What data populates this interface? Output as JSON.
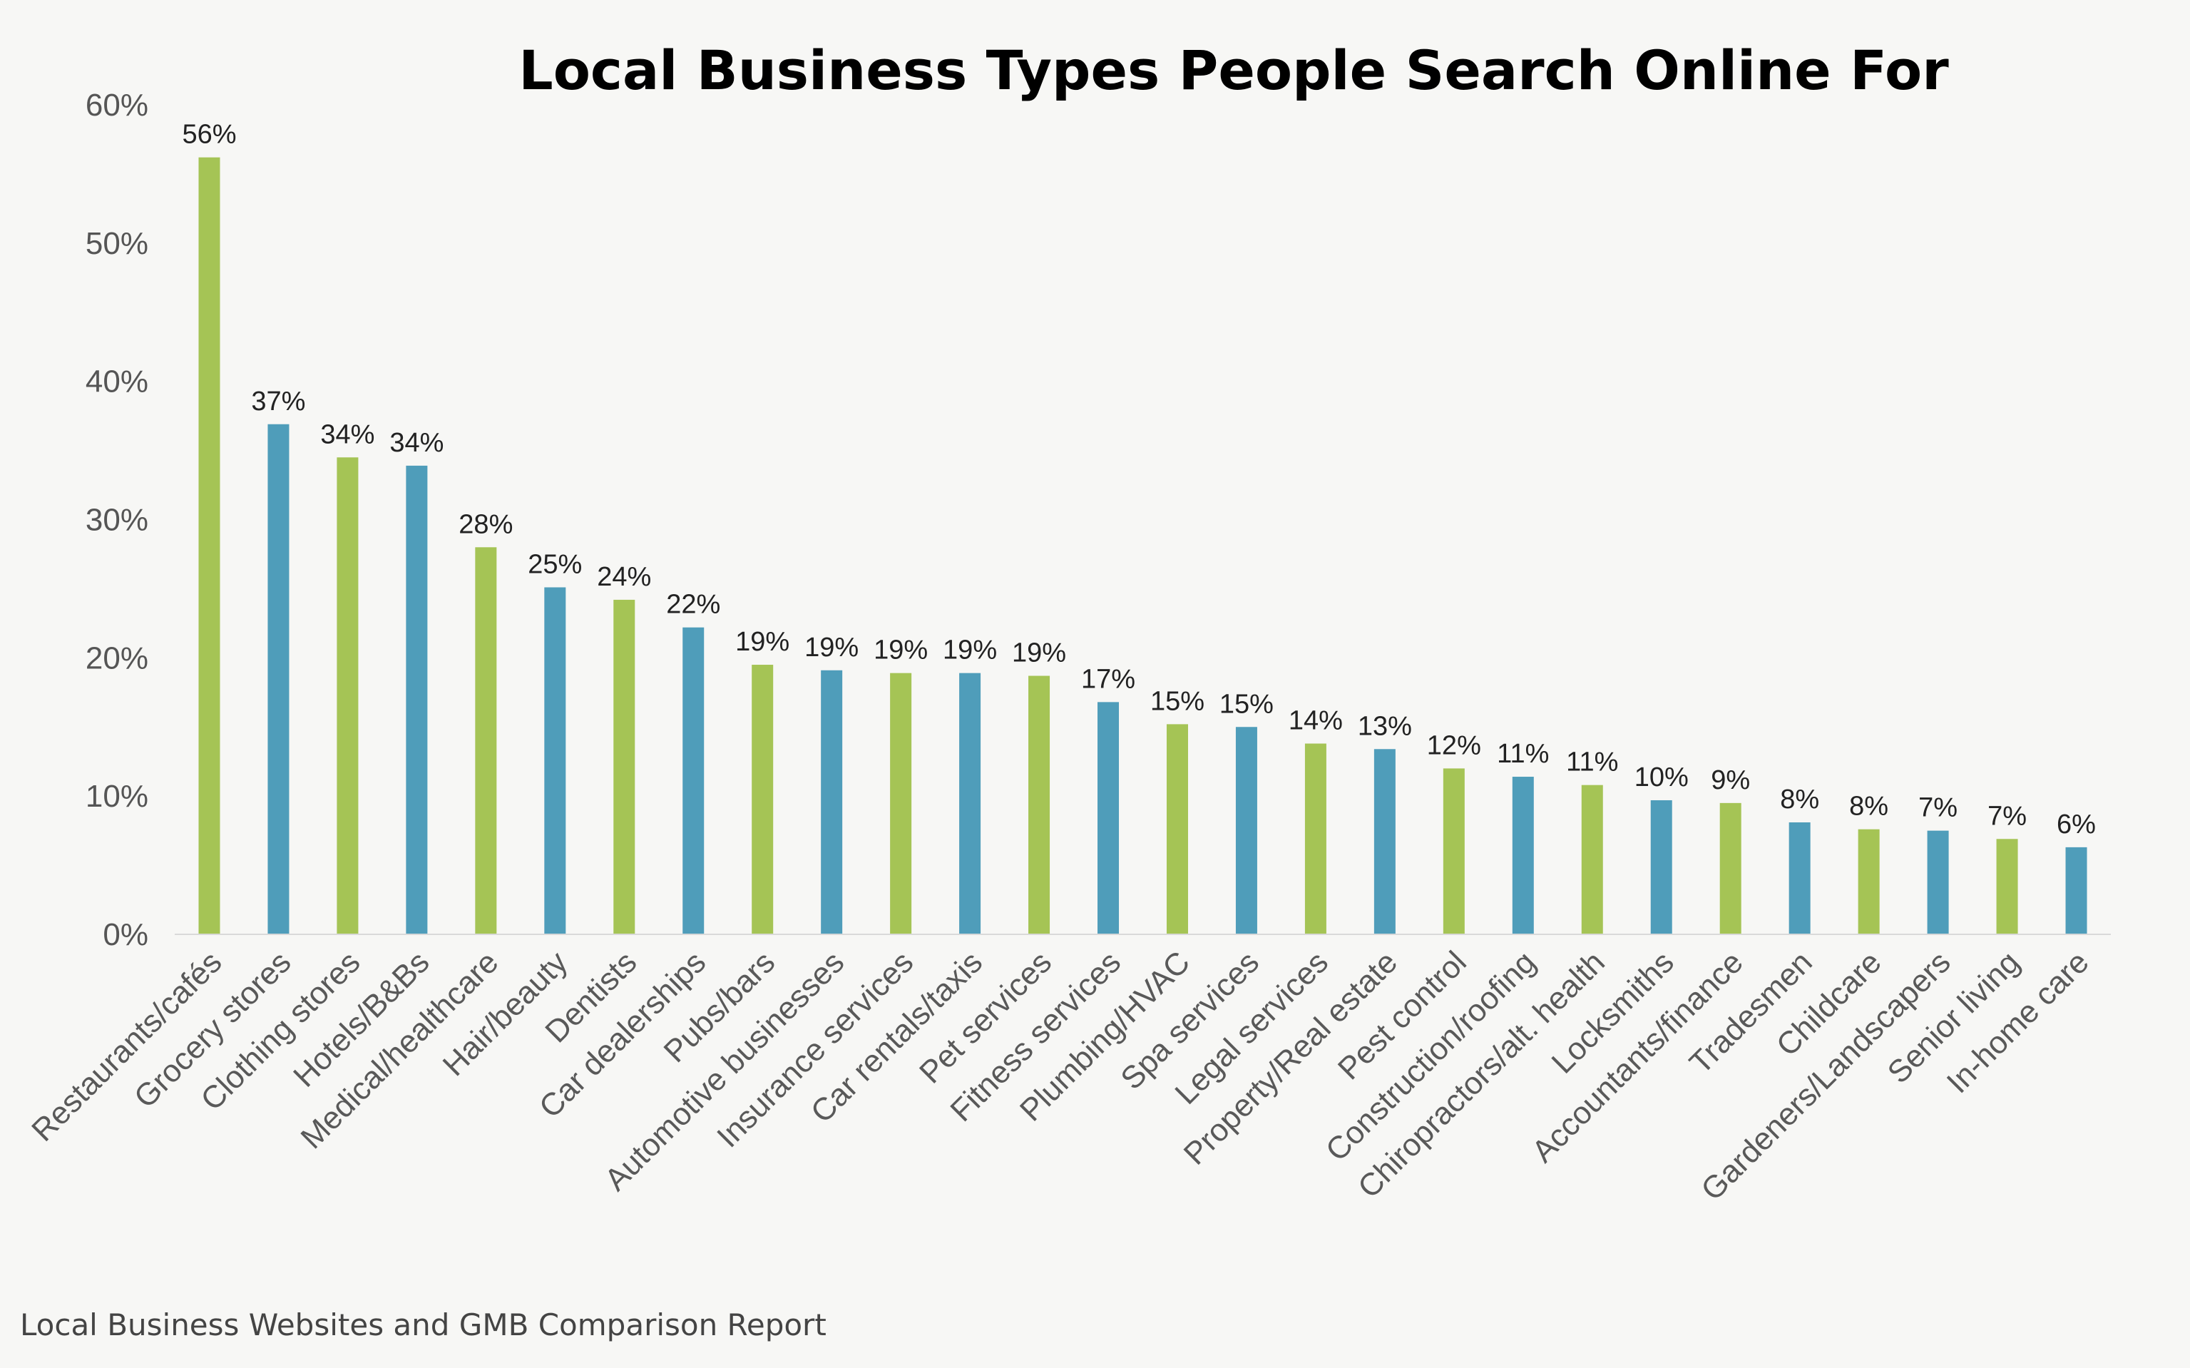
{
  "chart_data": {
    "type": "bar",
    "title": "Local Business Types People Search Online For",
    "source": "Local Business Websites and GMB Comparison Report",
    "categories": [
      "Restaurants/cafés",
      "Grocery stores",
      "Clothing stores",
      "Hotels/B&Bs",
      "Medical/healthcare",
      "Hair/beauty",
      "Dentists",
      "Car dealerships",
      "Pubs/bars",
      "Automotive businesses",
      "Insurance services",
      "Car rentals/taxis",
      "Pet services",
      "Fitness services",
      "Plumbing/HVAC",
      "Spa services",
      "Legal services",
      "Property/Real estate",
      "Pest control",
      "Construction/roofing",
      "Chiropractors/alt. health",
      "Locksmiths",
      "Accountants/finance",
      "Tradesmen",
      "Childcare",
      "Gardeners/Landscapers",
      "Senior living",
      "In-home care"
    ],
    "values": [
      56.2,
      36.9,
      34.5,
      33.9,
      28.0,
      25.1,
      24.2,
      22.2,
      19.5,
      19.1,
      18.9,
      18.9,
      18.7,
      16.8,
      15.2,
      15.0,
      13.8,
      13.4,
      12.0,
      11.4,
      10.8,
      9.7,
      9.5,
      8.1,
      7.6,
      7.5,
      6.9,
      6.3
    ],
    "data_labels": [
      "56%",
      "37%",
      "34%",
      "34%",
      "28%",
      "25%",
      "24%",
      "22%",
      "19%",
      "19%",
      "19%",
      "19%",
      "19%",
      "17%",
      "15%",
      "15%",
      "14%",
      "13%",
      "12%",
      "11%",
      "11%",
      "10%",
      "9%",
      "8%",
      "8%",
      "7%",
      "7%",
      "6%"
    ],
    "y_ticks": [
      "0%",
      "10%",
      "20%",
      "30%",
      "40%",
      "50%",
      "60%"
    ],
    "ylim": [
      0,
      60
    ],
    "xlabel": "",
    "ylabel": "",
    "grid": false,
    "legend": "none",
    "colors": [
      "#a5c455",
      "#4f9dba"
    ],
    "color_pattern": "alternating"
  }
}
